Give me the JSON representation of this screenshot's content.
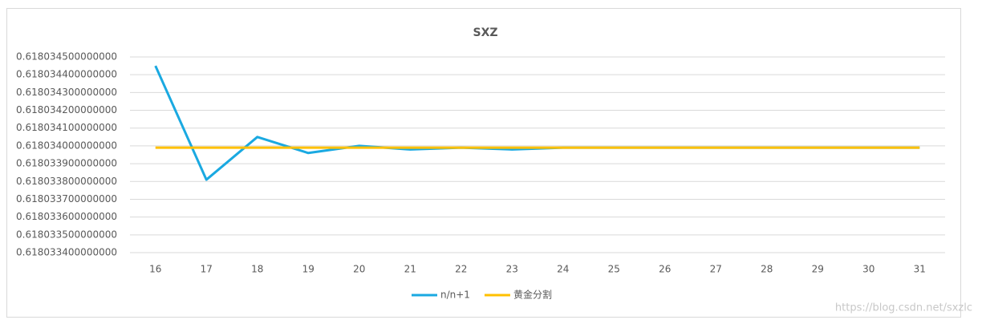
{
  "chart_data": {
    "type": "line",
    "title": "SXZ",
    "categories": [
      "16",
      "17",
      "18",
      "19",
      "20",
      "21",
      "22",
      "23",
      "24",
      "25",
      "26",
      "27",
      "28",
      "29",
      "30",
      "31"
    ],
    "series": [
      {
        "name": "n/n+1",
        "color": "#1aa9e1",
        "values": [
          0.61803445,
          0.61803381,
          0.61803405,
          0.61803396,
          0.618034,
          0.61803398,
          0.61803399,
          0.61803398,
          0.61803399,
          0.61803399,
          0.61803399,
          0.61803399,
          0.61803399,
          0.61803399,
          0.61803399,
          0.61803399
        ]
      },
      {
        "name": "黄金分割",
        "color": "#ffc000",
        "values": [
          0.61803399,
          0.61803399,
          0.61803399,
          0.61803399,
          0.61803399,
          0.61803399,
          0.61803399,
          0.61803399,
          0.61803399,
          0.61803399,
          0.61803399,
          0.61803399,
          0.61803399,
          0.61803399,
          0.61803399,
          0.61803399
        ]
      }
    ],
    "ylim": [
      0.6180334,
      0.6180345
    ],
    "yticks": [
      {
        "value": 0.6180334,
        "label": "0.618033400000000"
      },
      {
        "value": 0.6180335,
        "label": "0.618033500000000"
      },
      {
        "value": 0.6180336,
        "label": "0.618033600000000"
      },
      {
        "value": 0.6180337,
        "label": "0.618033700000000"
      },
      {
        "value": 0.6180338,
        "label": "0.618033800000000"
      },
      {
        "value": 0.6180339,
        "label": "0.618033900000000"
      },
      {
        "value": 0.618034,
        "label": "0.618034000000000"
      },
      {
        "value": 0.6180341,
        "label": "0.618034100000000"
      },
      {
        "value": 0.6180342,
        "label": "0.618034200000000"
      },
      {
        "value": 0.6180343,
        "label": "0.618034300000000"
      },
      {
        "value": 0.6180344,
        "label": "0.618034400000000"
      },
      {
        "value": 0.6180345,
        "label": "0.618034500000000"
      }
    ],
    "grid": true,
    "legend": "bottom",
    "watermark": "https://blog.csdn.net/sxzlc"
  }
}
